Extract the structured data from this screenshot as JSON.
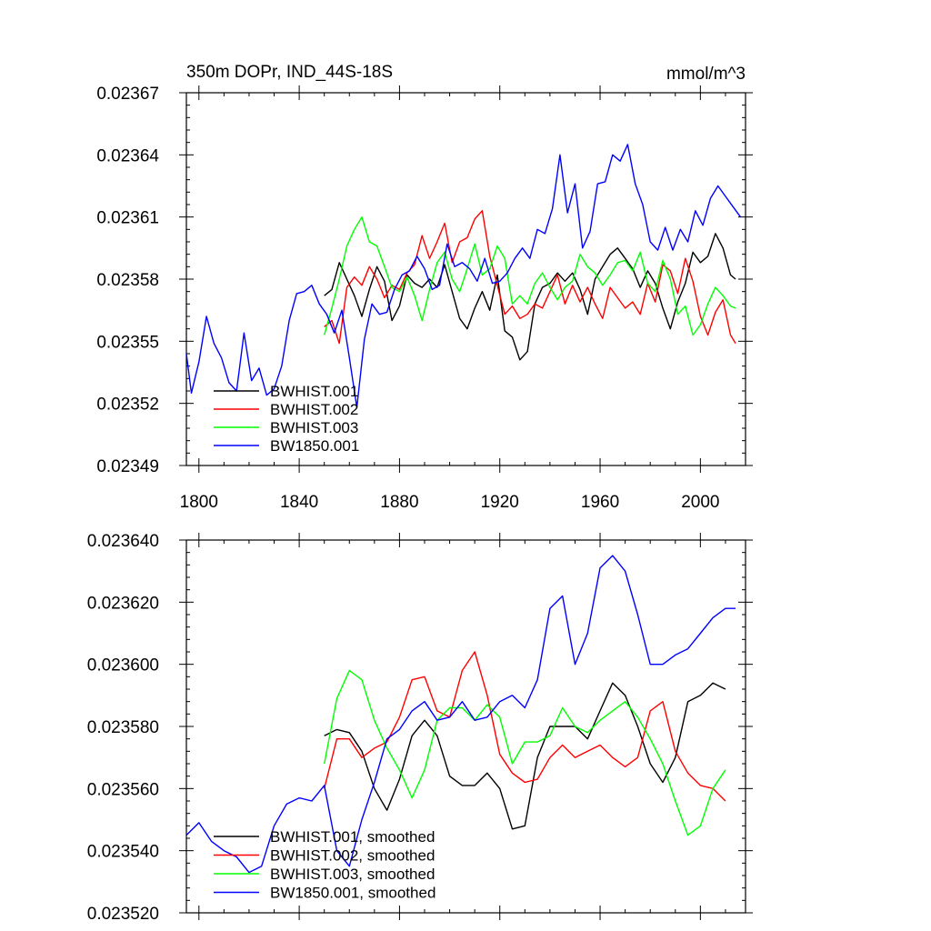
{
  "chart_data": [
    {
      "type": "line",
      "title": "350m DOPr, IND_44S-18S",
      "units": "mmol/m^3",
      "xlim": [
        1795,
        2018
      ],
      "ylim": [
        0.02349,
        0.02367
      ],
      "xticks": [
        1800,
        1840,
        1880,
        1920,
        1960,
        2000
      ],
      "xtick_labels": [
        "1800",
        "1840",
        "1880",
        "1920",
        "1960",
        "2000"
      ],
      "yticks": [
        0.02349,
        0.02352,
        0.02355,
        0.02358,
        0.02361,
        0.02364,
        0.02367
      ],
      "ytick_labels": [
        "0.02349",
        "0.02352",
        "0.02355",
        "0.02358",
        "0.02361",
        "0.02364",
        "0.02367"
      ],
      "legend_position": "bottom-left",
      "series": [
        {
          "name": "BWHIST.001",
          "color": "#000000",
          "x": [
            1850,
            1853,
            1856,
            1859,
            1862,
            1865,
            1868,
            1871,
            1874,
            1877,
            1880,
            1883,
            1886,
            1889,
            1892,
            1895,
            1898,
            1901,
            1904,
            1907,
            1910,
            1913,
            1916,
            1919,
            1922,
            1925,
            1928,
            1931,
            1934,
            1937,
            1940,
            1943,
            1946,
            1949,
            1952,
            1955,
            1958,
            1961,
            1964,
            1967,
            1970,
            1973,
            1976,
            1979,
            1982,
            1985,
            1988,
            1991,
            1994,
            1997,
            2000,
            2003,
            2006,
            2009,
            2012,
            2014
          ],
          "y": [
            0.023572,
            0.023575,
            0.023588,
            0.02358,
            0.023572,
            0.023562,
            0.023575,
            0.023586,
            0.023579,
            0.02356,
            0.023567,
            0.023582,
            0.023578,
            0.023576,
            0.02358,
            0.023576,
            0.023587,
            0.023574,
            0.023561,
            0.023556,
            0.023566,
            0.023574,
            0.023565,
            0.023582,
            0.023555,
            0.023552,
            0.023541,
            0.023545,
            0.023568,
            0.023576,
            0.023578,
            0.023583,
            0.023579,
            0.023583,
            0.023575,
            0.023563,
            0.02358,
            0.023586,
            0.023592,
            0.023595,
            0.02359,
            0.023585,
            0.023576,
            0.023584,
            0.023578,
            0.023566,
            0.023556,
            0.023569,
            0.023578,
            0.023593,
            0.023588,
            0.023591,
            0.023602,
            0.023595,
            0.023582,
            0.02358
          ]
        },
        {
          "name": "BWHIST.002",
          "color": "#ff0000",
          "x": [
            1850,
            1853,
            1856,
            1859,
            1862,
            1865,
            1868,
            1871,
            1874,
            1877,
            1880,
            1883,
            1886,
            1889,
            1892,
            1895,
            1898,
            1901,
            1904,
            1907,
            1910,
            1913,
            1916,
            1919,
            1922,
            1925,
            1928,
            1931,
            1934,
            1937,
            1940,
            1943,
            1946,
            1949,
            1952,
            1955,
            1958,
            1961,
            1964,
            1967,
            1970,
            1973,
            1976,
            1979,
            1982,
            1985,
            1988,
            1991,
            1994,
            1997,
            2000,
            2003,
            2006,
            2009,
            2012,
            2014
          ],
          "y": [
            0.023557,
            0.02356,
            0.023549,
            0.023576,
            0.023581,
            0.023577,
            0.023586,
            0.02358,
            0.023571,
            0.023577,
            0.023575,
            0.023583,
            0.023587,
            0.023601,
            0.02359,
            0.023598,
            0.023607,
            0.023588,
            0.023598,
            0.0236,
            0.023609,
            0.023613,
            0.023591,
            0.023577,
            0.023563,
            0.023567,
            0.023561,
            0.023563,
            0.023568,
            0.023566,
            0.023574,
            0.023582,
            0.023568,
            0.023577,
            0.023569,
            0.023576,
            0.023568,
            0.023561,
            0.023576,
            0.023571,
            0.023566,
            0.023569,
            0.023563,
            0.023578,
            0.023569,
            0.023587,
            0.023584,
            0.023573,
            0.02359,
            0.023579,
            0.023562,
            0.023553,
            0.023564,
            0.02357,
            0.023553,
            0.023549
          ]
        },
        {
          "name": "BWHIST.003",
          "color": "#00ff00",
          "x": [
            1850,
            1853,
            1856,
            1859,
            1862,
            1865,
            1868,
            1871,
            1874,
            1877,
            1880,
            1883,
            1886,
            1889,
            1892,
            1895,
            1898,
            1901,
            1904,
            1907,
            1910,
            1913,
            1916,
            1919,
            1922,
            1925,
            1928,
            1931,
            1934,
            1937,
            1940,
            1943,
            1946,
            1949,
            1952,
            1955,
            1958,
            1961,
            1964,
            1967,
            1970,
            1973,
            1976,
            1979,
            1982,
            1985,
            1988,
            1991,
            1994,
            1997,
            2000,
            2003,
            2006,
            2009,
            2012,
            2014
          ],
          "y": [
            0.023553,
            0.023566,
            0.02358,
            0.023596,
            0.023604,
            0.02361,
            0.023598,
            0.023596,
            0.023586,
            0.023576,
            0.023574,
            0.023581,
            0.023572,
            0.02356,
            0.023575,
            0.023588,
            0.023593,
            0.02358,
            0.023574,
            0.023585,
            0.023597,
            0.023582,
            0.023585,
            0.023596,
            0.02359,
            0.023568,
            0.023572,
            0.023568,
            0.023578,
            0.023583,
            0.023576,
            0.02357,
            0.023576,
            0.023579,
            0.023592,
            0.023586,
            0.023583,
            0.023577,
            0.023582,
            0.023588,
            0.023589,
            0.023584,
            0.023593,
            0.023578,
            0.023574,
            0.023589,
            0.02358,
            0.023563,
            0.023567,
            0.023553,
            0.023558,
            0.023568,
            0.023576,
            0.023572,
            0.023567,
            0.023566
          ]
        },
        {
          "name": "BW1850.001",
          "color": "#0000ff",
          "x": [
            1795,
            1797,
            1800,
            1803,
            1806,
            1809,
            1812,
            1815,
            1818,
            1821,
            1824,
            1827,
            1830,
            1833,
            1836,
            1839,
            1842,
            1845,
            1848,
            1851,
            1854,
            1857,
            1860,
            1863,
            1866,
            1869,
            1872,
            1875,
            1878,
            1881,
            1884,
            1887,
            1890,
            1893,
            1896,
            1899,
            1902,
            1905,
            1908,
            1911,
            1914,
            1917,
            1920,
            1923,
            1926,
            1929,
            1932,
            1935,
            1938,
            1941,
            1944,
            1947,
            1950,
            1953,
            1956,
            1959,
            1962,
            1965,
            1968,
            1971,
            1974,
            1977,
            1980,
            1983,
            1986,
            1989,
            1992,
            1995,
            1998,
            2001,
            2004,
            2007,
            2010,
            2013,
            2016
          ],
          "y": [
            0.023544,
            0.023525,
            0.02354,
            0.023562,
            0.023549,
            0.023542,
            0.02353,
            0.023526,
            0.023554,
            0.023531,
            0.023537,
            0.023524,
            0.023527,
            0.023538,
            0.02356,
            0.023573,
            0.023574,
            0.023577,
            0.023568,
            0.023563,
            0.023554,
            0.023565,
            0.023542,
            0.023518,
            0.023551,
            0.023568,
            0.023563,
            0.023564,
            0.023575,
            0.023582,
            0.023584,
            0.023591,
            0.023585,
            0.023575,
            0.023577,
            0.023597,
            0.023586,
            0.023588,
            0.023585,
            0.023579,
            0.02359,
            0.023578,
            0.023579,
            0.023583,
            0.02359,
            0.023595,
            0.02359,
            0.023604,
            0.023602,
            0.023614,
            0.02364,
            0.023612,
            0.023626,
            0.023595,
            0.023603,
            0.023626,
            0.023627,
            0.02364,
            0.023637,
            0.023645,
            0.023626,
            0.023616,
            0.023598,
            0.023594,
            0.023605,
            0.023594,
            0.023604,
            0.023598,
            0.023613,
            0.023606,
            0.023619,
            0.023625,
            0.02362,
            0.023615,
            0.02361
          ]
        }
      ]
    },
    {
      "type": "line",
      "title": "",
      "xlim": [
        1795,
        2018
      ],
      "ylim": [
        0.02352,
        0.02364
      ],
      "xticks": [
        1800,
        1840,
        1880,
        1920,
        1960,
        2000
      ],
      "yticks": [
        0.02352,
        0.02354,
        0.02356,
        0.02358,
        0.0236,
        0.02362,
        0.02364
      ],
      "ytick_labels": [
        "0.023520",
        "0.023540",
        "0.023560",
        "0.023580",
        "0.023600",
        "0.023620",
        "0.023640"
      ],
      "legend_position": "bottom-left",
      "series": [
        {
          "name": "BWHIST.001, smoothed",
          "color": "#000000",
          "x": [
            1850,
            1855,
            1860,
            1865,
            1870,
            1875,
            1880,
            1885,
            1890,
            1895,
            1900,
            1905,
            1910,
            1915,
            1920,
            1925,
            1930,
            1935,
            1940,
            1945,
            1950,
            1955,
            1960,
            1965,
            1970,
            1975,
            1980,
            1985,
            1990,
            1995,
            2000,
            2005,
            2010
          ],
          "y": [
            0.023577,
            0.023579,
            0.023578,
            0.023572,
            0.02356,
            0.023553,
            0.023563,
            0.023577,
            0.023582,
            0.023577,
            0.023564,
            0.023561,
            0.023561,
            0.023565,
            0.02356,
            0.023547,
            0.023548,
            0.02357,
            0.02358,
            0.02358,
            0.02358,
            0.023576,
            0.023585,
            0.023594,
            0.02359,
            0.02358,
            0.023568,
            0.023562,
            0.02357,
            0.023588,
            0.02359,
            0.023594,
            0.023592
          ]
        },
        {
          "name": "BWHIST.002, smoothed",
          "color": "#ff0000",
          "x": [
            1850,
            1855,
            1860,
            1865,
            1870,
            1875,
            1880,
            1885,
            1890,
            1895,
            1900,
            1905,
            1910,
            1915,
            1920,
            1925,
            1930,
            1935,
            1940,
            1945,
            1950,
            1955,
            1960,
            1965,
            1970,
            1975,
            1980,
            1985,
            1990,
            1995,
            2000,
            2005,
            2010
          ],
          "y": [
            0.02356,
            0.023576,
            0.023576,
            0.02357,
            0.023573,
            0.023575,
            0.023583,
            0.023595,
            0.023596,
            0.023585,
            0.023583,
            0.023598,
            0.023604,
            0.02359,
            0.023571,
            0.023565,
            0.023562,
            0.023563,
            0.02357,
            0.023574,
            0.02357,
            0.023572,
            0.023574,
            0.02357,
            0.023567,
            0.02357,
            0.023585,
            0.023588,
            0.023572,
            0.023565,
            0.023561,
            0.02356,
            0.023556
          ]
        },
        {
          "name": "BWHIST.003, smoothed",
          "color": "#00ff00",
          "x": [
            1850,
            1855,
            1860,
            1865,
            1870,
            1875,
            1880,
            1885,
            1890,
            1895,
            1900,
            1905,
            1910,
            1915,
            1920,
            1925,
            1930,
            1935,
            1940,
            1945,
            1950,
            1955,
            1960,
            1965,
            1970,
            1975,
            1980,
            1985,
            1990,
            1995,
            2000,
            2005,
            2010
          ],
          "y": [
            0.023568,
            0.023589,
            0.023598,
            0.023595,
            0.023582,
            0.023573,
            0.023566,
            0.023557,
            0.023566,
            0.023582,
            0.023586,
            0.023586,
            0.023582,
            0.023587,
            0.023583,
            0.023568,
            0.023575,
            0.023575,
            0.023577,
            0.023586,
            0.02358,
            0.023578,
            0.023582,
            0.023585,
            0.023588,
            0.023583,
            0.023576,
            0.023568,
            0.023556,
            0.023545,
            0.023548,
            0.02356,
            0.023566
          ]
        },
        {
          "name": "BW1850.001, smoothed",
          "color": "#0000ff",
          "x": [
            1795,
            1800,
            1805,
            1810,
            1815,
            1820,
            1825,
            1830,
            1835,
            1840,
            1845,
            1850,
            1855,
            1860,
            1865,
            1870,
            1875,
            1880,
            1885,
            1890,
            1895,
            1900,
            1905,
            1910,
            1915,
            1920,
            1925,
            1930,
            1935,
            1940,
            1945,
            1950,
            1955,
            1960,
            1965,
            1970,
            1975,
            1980,
            1985,
            1990,
            1995,
            2000,
            2005,
            2010,
            2014
          ],
          "y": [
            0.023545,
            0.023549,
            0.023543,
            0.02354,
            0.023538,
            0.023533,
            0.023535,
            0.023548,
            0.023555,
            0.023557,
            0.023556,
            0.023561,
            0.02354,
            0.023535,
            0.02355,
            0.023562,
            0.023576,
            0.023579,
            0.023585,
            0.023588,
            0.023582,
            0.023583,
            0.023588,
            0.023582,
            0.023583,
            0.023588,
            0.02359,
            0.023586,
            0.023595,
            0.023618,
            0.023622,
            0.0236,
            0.02361,
            0.023631,
            0.023635,
            0.02363,
            0.023616,
            0.0236,
            0.0236,
            0.023603,
            0.023605,
            0.02361,
            0.023615,
            0.023618,
            0.023618
          ]
        }
      ]
    }
  ]
}
